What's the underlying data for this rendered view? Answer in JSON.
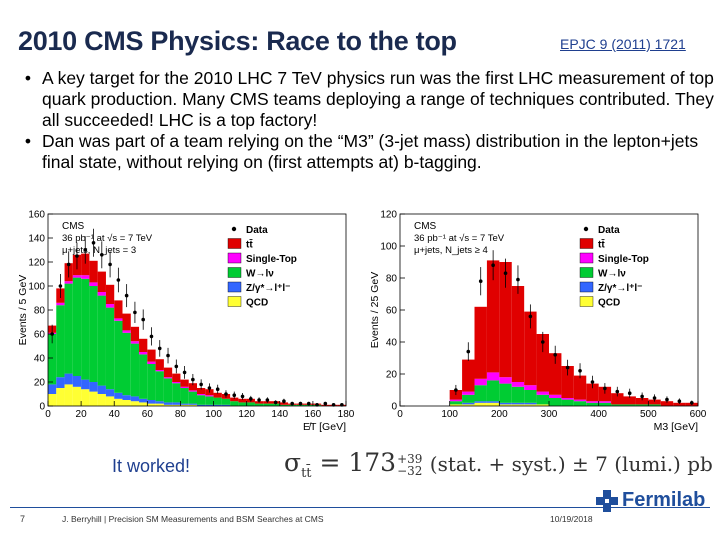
{
  "header": {
    "title": "2010 CMS Physics:  Race to the top",
    "reference": "EPJC 9 (2011) 1721"
  },
  "bullets": [
    "A key target for the 2010 LHC 7 TeV physics run was the first LHC measurement of top quark production.  Many CMS teams deploying a range of techniques contributed. They all succeeded! LHC is a top factory!",
    "Dan was part of a team relying on the “M3” (3-jet mass) distribution in the lepton+jets final state, without relying on (first attempts at) b-tagging."
  ],
  "colors": {
    "title": "#1a2a4f",
    "ttbar": "#e00000",
    "single_top": "#ff00ff",
    "wlnu": "#00cc33",
    "zgamma": "#3366ff",
    "qcd": "#ffff33"
  },
  "chart_data": [
    {
      "type": "bar",
      "stacked": true,
      "ylabel": "Events / 5 GeV",
      "xlabel": "E̸T [GeV]",
      "xlim": [
        0,
        180
      ],
      "ylim": [
        0,
        160
      ],
      "xticks": [
        "0",
        "20",
        "40",
        "60",
        "80",
        "100",
        "120",
        "140",
        "160",
        "180"
      ],
      "yticks": [
        "0",
        "20",
        "40",
        "60",
        "80",
        "100",
        "120",
        "140",
        "160"
      ],
      "labels": {
        "cms": "CMS",
        "lumi": "36 pb⁻¹ at √s = 7 TeV",
        "sel": "μ+jets, N_jets = 3"
      },
      "legend": [
        "Data",
        "tt̄",
        "Single-Top",
        "W→lν",
        "Z/γ*→l⁺l⁻",
        "QCD"
      ],
      "x": [
        2.5,
        7.5,
        12.5,
        17.5,
        22.5,
        27.5,
        32.5,
        37.5,
        42.5,
        47.5,
        52.5,
        57.5,
        62.5,
        67.5,
        72.5,
        77.5,
        82.5,
        87.5,
        92.5,
        97.5,
        102.5,
        107.5,
        112.5,
        117.5,
        122.5,
        127.5,
        132.5,
        137.5,
        142.5,
        147.5,
        152.5,
        157.5,
        162.5,
        167.5,
        172.5,
        177.5
      ],
      "series": [
        {
          "name": "QCD",
          "values": [
            10,
            15,
            18,
            16,
            14,
            12,
            10,
            8,
            6,
            5,
            4,
            3,
            2,
            2,
            1,
            1,
            1,
            1,
            0,
            0,
            0,
            0,
            0,
            0,
            0,
            0,
            0,
            0,
            0,
            0,
            0,
            0,
            0,
            0,
            0,
            0
          ]
        },
        {
          "name": "Z/γ*→l⁺l⁻",
          "values": [
            8,
            9,
            9,
            9,
            8,
            8,
            7,
            6,
            5,
            4,
            4,
            3,
            3,
            2,
            2,
            2,
            1,
            1,
            1,
            1,
            1,
            1,
            0,
            0,
            0,
            0,
            0,
            0,
            0,
            0,
            0,
            0,
            0,
            0,
            0,
            0
          ]
        },
        {
          "name": "W→lν",
          "values": [
            42,
            60,
            75,
            82,
            84,
            80,
            75,
            68,
            60,
            52,
            44,
            37,
            30,
            25,
            20,
            16,
            13,
            10,
            8,
            7,
            6,
            5,
            4,
            3,
            3,
            2,
            2,
            2,
            1,
            1,
            1,
            1,
            1,
            0,
            0,
            0
          ]
        },
        {
          "name": "Single-Top",
          "values": [
            1,
            2,
            2,
            2,
            3,
            3,
            3,
            3,
            2,
            2,
            2,
            2,
            2,
            1,
            1,
            1,
            1,
            1,
            1,
            1,
            0,
            0,
            0,
            0,
            0,
            0,
            0,
            0,
            0,
            0,
            0,
            0,
            0,
            0,
            0,
            0
          ]
        },
        {
          "name": "tt̄",
          "values": [
            6,
            12,
            15,
            17,
            18,
            18,
            17,
            16,
            15,
            14,
            12,
            11,
            10,
            9,
            8,
            7,
            6,
            6,
            5,
            5,
            4,
            4,
            3,
            3,
            3,
            2,
            2,
            2,
            2,
            1,
            1,
            1,
            1,
            1,
            1,
            1
          ]
        }
      ],
      "data": [
        60,
        100,
        118,
        125,
        130,
        136,
        126,
        118,
        105,
        92,
        78,
        72,
        58,
        48,
        42,
        33,
        28,
        22,
        18,
        15,
        14,
        10,
        9,
        8,
        6,
        5,
        5,
        3,
        4,
        2,
        2,
        2,
        1,
        2,
        1,
        1
      ]
    },
    {
      "type": "bar",
      "stacked": true,
      "ylabel": "Events / 25 GeV",
      "xlabel": "M3 [GeV]",
      "xlim": [
        0,
        600
      ],
      "ylim": [
        0,
        120
      ],
      "xticks": [
        "0",
        "100",
        "200",
        "300",
        "400",
        "500",
        "600"
      ],
      "yticks": [
        "0",
        "20",
        "40",
        "60",
        "80",
        "100",
        "120"
      ],
      "labels": {
        "cms": "CMS",
        "lumi": "36 pb⁻¹ at √s = 7 TeV",
        "sel": "μ+jets, N_jets ≥ 4"
      },
      "legend": [
        "Data",
        "tt̄",
        "Single-Top",
        "W→lν",
        "Z/γ*→l⁺l⁻",
        "QCD"
      ],
      "x": [
        12.5,
        37.5,
        62.5,
        87.5,
        112.5,
        137.5,
        162.5,
        187.5,
        212.5,
        237.5,
        262.5,
        287.5,
        312.5,
        337.5,
        362.5,
        387.5,
        412.5,
        437.5,
        462.5,
        487.5,
        512.5,
        537.5,
        562.5,
        587.5
      ],
      "series": [
        {
          "name": "QCD",
          "values": [
            0,
            0,
            0,
            0,
            1,
            1,
            2,
            2,
            1,
            1,
            1,
            1,
            0,
            0,
            0,
            0,
            0,
            0,
            0,
            0,
            0,
            0,
            0,
            0
          ]
        },
        {
          "name": "Z/γ*→l⁺l⁻",
          "values": [
            0,
            0,
            0,
            0,
            0,
            1,
            1,
            1,
            1,
            1,
            1,
            0,
            0,
            0,
            0,
            0,
            0,
            0,
            0,
            0,
            0,
            0,
            0,
            0
          ]
        },
        {
          "name": "W→lν",
          "values": [
            0,
            0,
            0,
            0,
            2,
            5,
            10,
            13,
            12,
            10,
            8,
            6,
            5,
            4,
            3,
            2,
            2,
            1,
            1,
            1,
            1,
            0,
            0,
            0
          ]
        },
        {
          "name": "Single-Top",
          "values": [
            0,
            0,
            0,
            0,
            1,
            2,
            4,
            5,
            4,
            3,
            3,
            2,
            2,
            1,
            1,
            1,
            1,
            0,
            0,
            0,
            0,
            0,
            0,
            0
          ]
        },
        {
          "name": "tt̄",
          "values": [
            0,
            0,
            0,
            0,
            6,
            20,
            45,
            70,
            72,
            60,
            46,
            36,
            26,
            20,
            15,
            11,
            9,
            7,
            5,
            4,
            3,
            3,
            2,
            2
          ]
        }
      ],
      "data": [
        0,
        0,
        0,
        0,
        10,
        34,
        78,
        88,
        83,
        79,
        56,
        40,
        32,
        24,
        22,
        15,
        11,
        9,
        8,
        6,
        5,
        4,
        3,
        2
      ]
    }
  ],
  "result": {
    "worked_label": "It worked!",
    "formula_prefix": "σ",
    "formula_sub": "tt̄",
    "formula_eq": " = 173",
    "formula_up": "+39",
    "formula_down": "−32",
    "formula_tail": " (stat. + syst.) ± 7 (lumi.) pb"
  },
  "footer": {
    "page_number": "7",
    "citation": "J. Berryhill | Precision SM Measurements and BSM Searches at CMS",
    "date": "10/19/2018",
    "logo_text": "Fermilab"
  }
}
